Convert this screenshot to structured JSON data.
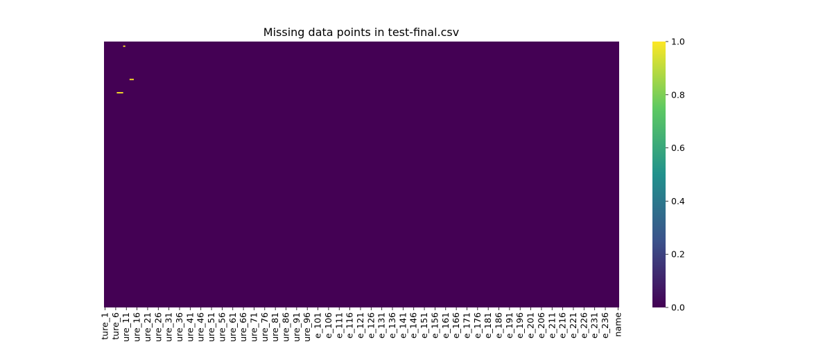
{
  "chart_data": {
    "type": "heatmap",
    "title": "Missing data points in test-final.csv",
    "xlabel": "",
    "ylabel": "",
    "colormap": "viridis",
    "colors": {
      "viridis_0": "#440154",
      "viridis_25": "#3b528b",
      "viridis_50": "#21918c",
      "viridis_75": "#5ec962",
      "viridis_100": "#fde725",
      "missing_cell": "#fde725",
      "background_cell": "#440154"
    },
    "n_rows": 400,
    "n_columns": 242,
    "missing_cells": [
      {
        "column": 9,
        "row": 6,
        "value": 1
      },
      {
        "column": 12,
        "row": 56,
        "value": 1
      },
      {
        "column": 13,
        "row": 56,
        "value": 1
      },
      {
        "column": 6,
        "row": 76,
        "value": 1
      },
      {
        "column": 7,
        "row": 76,
        "value": 1
      },
      {
        "column": 8,
        "row": 76,
        "value": 1
      }
    ],
    "x_tick_labels": [
      {
        "label": "ture_1",
        "index": 0
      },
      {
        "label": "ture_6",
        "index": 5
      },
      {
        "label": "ure_11",
        "index": 10
      },
      {
        "label": "ure_16",
        "index": 15
      },
      {
        "label": "ure_21",
        "index": 20
      },
      {
        "label": "ure_26",
        "index": 25
      },
      {
        "label": "ure_31",
        "index": 30
      },
      {
        "label": "ure_36",
        "index": 35
      },
      {
        "label": "ure_41",
        "index": 40
      },
      {
        "label": "ure_46",
        "index": 45
      },
      {
        "label": "ure_51",
        "index": 50
      },
      {
        "label": "ure_56",
        "index": 55
      },
      {
        "label": "ure_61",
        "index": 60
      },
      {
        "label": "ure_66",
        "index": 65
      },
      {
        "label": "ure_71",
        "index": 70
      },
      {
        "label": "ure_76",
        "index": 75
      },
      {
        "label": "ure_81",
        "index": 80
      },
      {
        "label": "ure_86",
        "index": 85
      },
      {
        "label": "ure_91",
        "index": 90
      },
      {
        "label": "ure_96",
        "index": 95
      },
      {
        "label": "e_101",
        "index": 100
      },
      {
        "label": "e_106",
        "index": 105
      },
      {
        "label": "e_111",
        "index": 110
      },
      {
        "label": "e_116",
        "index": 115
      },
      {
        "label": "e_121",
        "index": 120
      },
      {
        "label": "e_126",
        "index": 125
      },
      {
        "label": "e_131",
        "index": 130
      },
      {
        "label": "e_136",
        "index": 135
      },
      {
        "label": "e_141",
        "index": 140
      },
      {
        "label": "e_146",
        "index": 145
      },
      {
        "label": "e_151",
        "index": 150
      },
      {
        "label": "e_156",
        "index": 155
      },
      {
        "label": "e_161",
        "index": 160
      },
      {
        "label": "e_166",
        "index": 165
      },
      {
        "label": "e_171",
        "index": 170
      },
      {
        "label": "e_176",
        "index": 175
      },
      {
        "label": "e_181",
        "index": 180
      },
      {
        "label": "e_186",
        "index": 185
      },
      {
        "label": "e_191",
        "index": 190
      },
      {
        "label": "e_196",
        "index": 195
      },
      {
        "label": "e_201",
        "index": 200
      },
      {
        "label": "e_206",
        "index": 205
      },
      {
        "label": "e_211",
        "index": 210
      },
      {
        "label": "e_216",
        "index": 215
      },
      {
        "label": "e_221",
        "index": 220
      },
      {
        "label": "e_226",
        "index": 225
      },
      {
        "label": "e_231",
        "index": 230
      },
      {
        "label": "e_236",
        "index": 235
      },
      {
        "label": "name",
        "index": 241
      }
    ],
    "colorbar": {
      "range": [
        0.0,
        1.0
      ],
      "ticks": [
        {
          "value": 0.0,
          "label": "0.0"
        },
        {
          "value": 0.2,
          "label": "0.2"
        },
        {
          "value": 0.4,
          "label": "0.4"
        },
        {
          "value": 0.6,
          "label": "0.6"
        },
        {
          "value": 0.8,
          "label": "0.8"
        },
        {
          "value": 1.0,
          "label": "1.0"
        }
      ]
    },
    "y_tick_labels": [],
    "grid": false
  }
}
